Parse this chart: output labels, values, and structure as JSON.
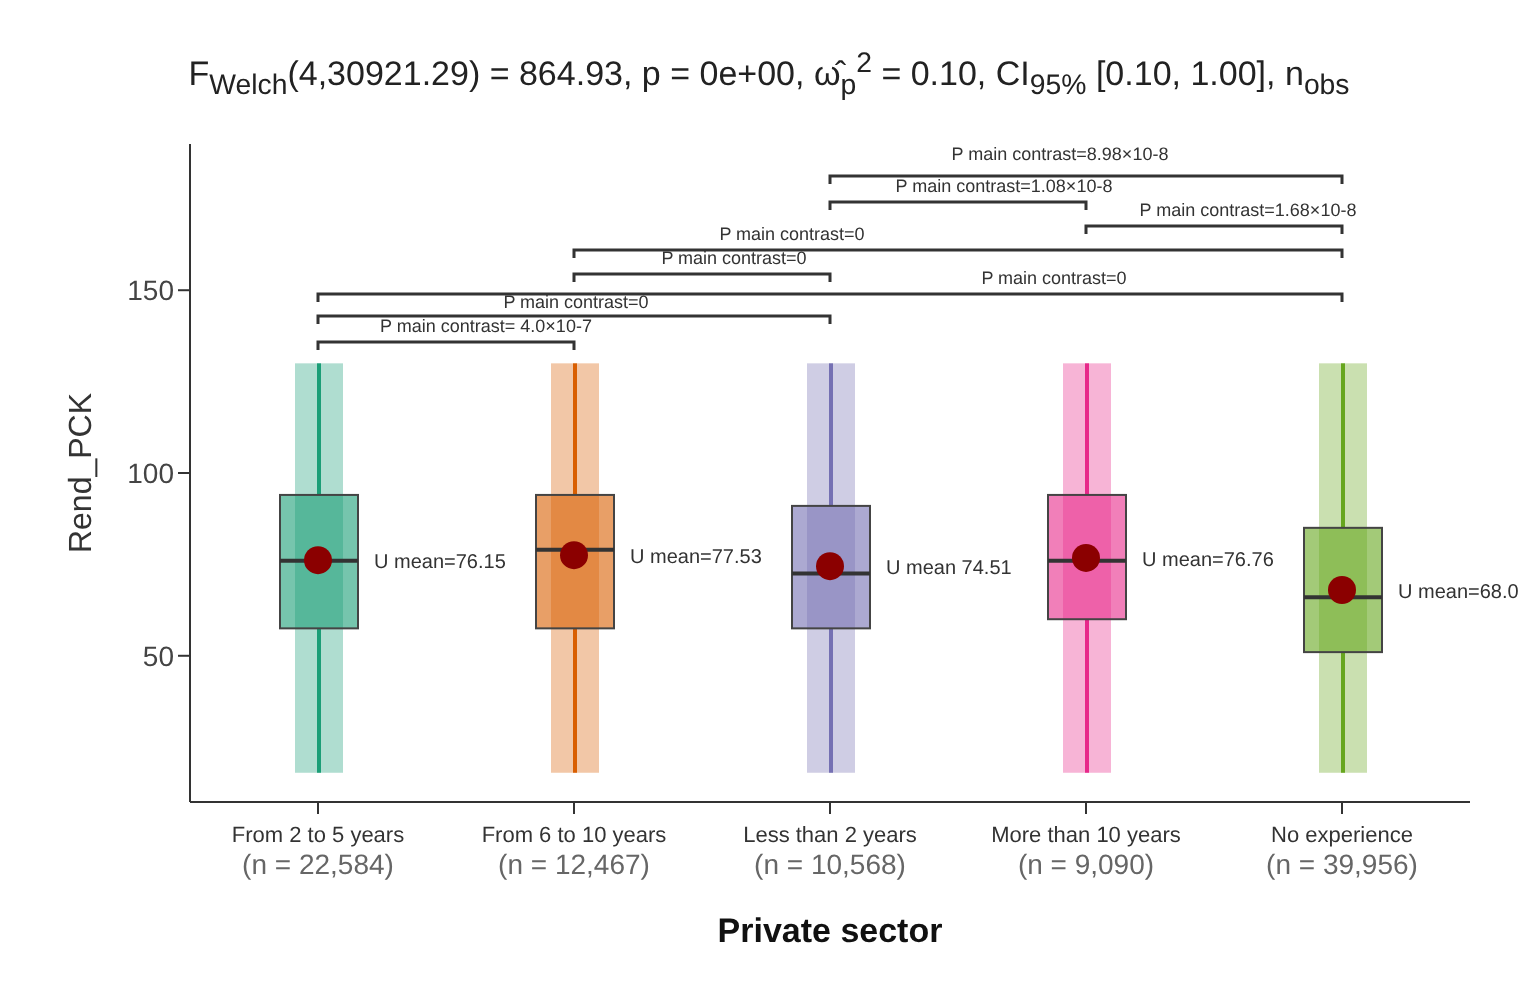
{
  "chart_data": {
    "type": "box",
    "subtitle": "F$_{Welch}$(4,30921.29) = 864.93, p = 0e+00, ω̂$_{p}$$^{2}$ = 0.10, CI$_{95%}$ [0.10, 1.00], n$_{obs}$",
    "xlabel": "Private sector",
    "ylabel": "Rend_PCK",
    "categories": [
      "From 2 to 5 years\n(n = 22,584)",
      "From 6 to 10 years\n(n = 12,467)",
      "Less than 2 years\n(n = 10,568)",
      "More than 10 years\n(n = 9,090)",
      "No experience\n(n = 39,956)"
    ],
    "colors": [
      "#1b9e77",
      "#d95f02",
      "#7570b3",
      "#e7298a",
      "#66a61e"
    ],
    "boxes": [
      {
        "low": 18,
        "q1": 57.5,
        "median": 76,
        "q3": 94,
        "high": 130,
        "mean": 76.15
      },
      {
        "low": 18,
        "q1": 57.5,
        "median": 79,
        "q3": 94,
        "high": 130,
        "mean": 77.53
      },
      {
        "low": 18,
        "q1": 57.5,
        "median": 72.5,
        "q3": 91,
        "high": 130,
        "mean": 74.51
      },
      {
        "low": 18,
        "q1": 60,
        "median": 76,
        "q3": 94,
        "high": 130,
        "mean": 76.76
      },
      {
        "low": 18,
        "q1": 51,
        "median": 66,
        "q3": 85,
        "high": 130,
        "mean": 68.0
      }
    ],
    "ylim": [
      10,
      190
    ],
    "yticks": [
      50,
      100,
      150
    ],
    "annotations": [
      {
        "text": "U mean=76.15",
        "x": "From 2 to 5 years\n(n = 22,584)",
        "y": 76.15
      },
      {
        "text": "U mean=77.53",
        "x": "From 6 to 10 years\n(n = 12,467)",
        "y": 77.53
      },
      {
        "text": "U mean 74.51",
        "x": "Less than 2 years\n(n = 10,568)",
        "y": 74.51
      },
      {
        "text": "U mean=76.76",
        "x": "More than 10 years\n(n = 9,090)",
        "y": 76.76
      },
      {
        "text": "U mean=68.0",
        "x": "No experience\n(n = 39,956)",
        "y": 68.0
      },
      "P main contrast=8.98×10-8",
      "P main contrast=1.08×10-8",
      "P main contrast=1.68×10-8",
      "P main contrast=0",
      "P main contrast=0",
      "P main contrast=0",
      "P main contrast=0",
      "P main contrast= 4.0×10-7"
    ]
  }
}
